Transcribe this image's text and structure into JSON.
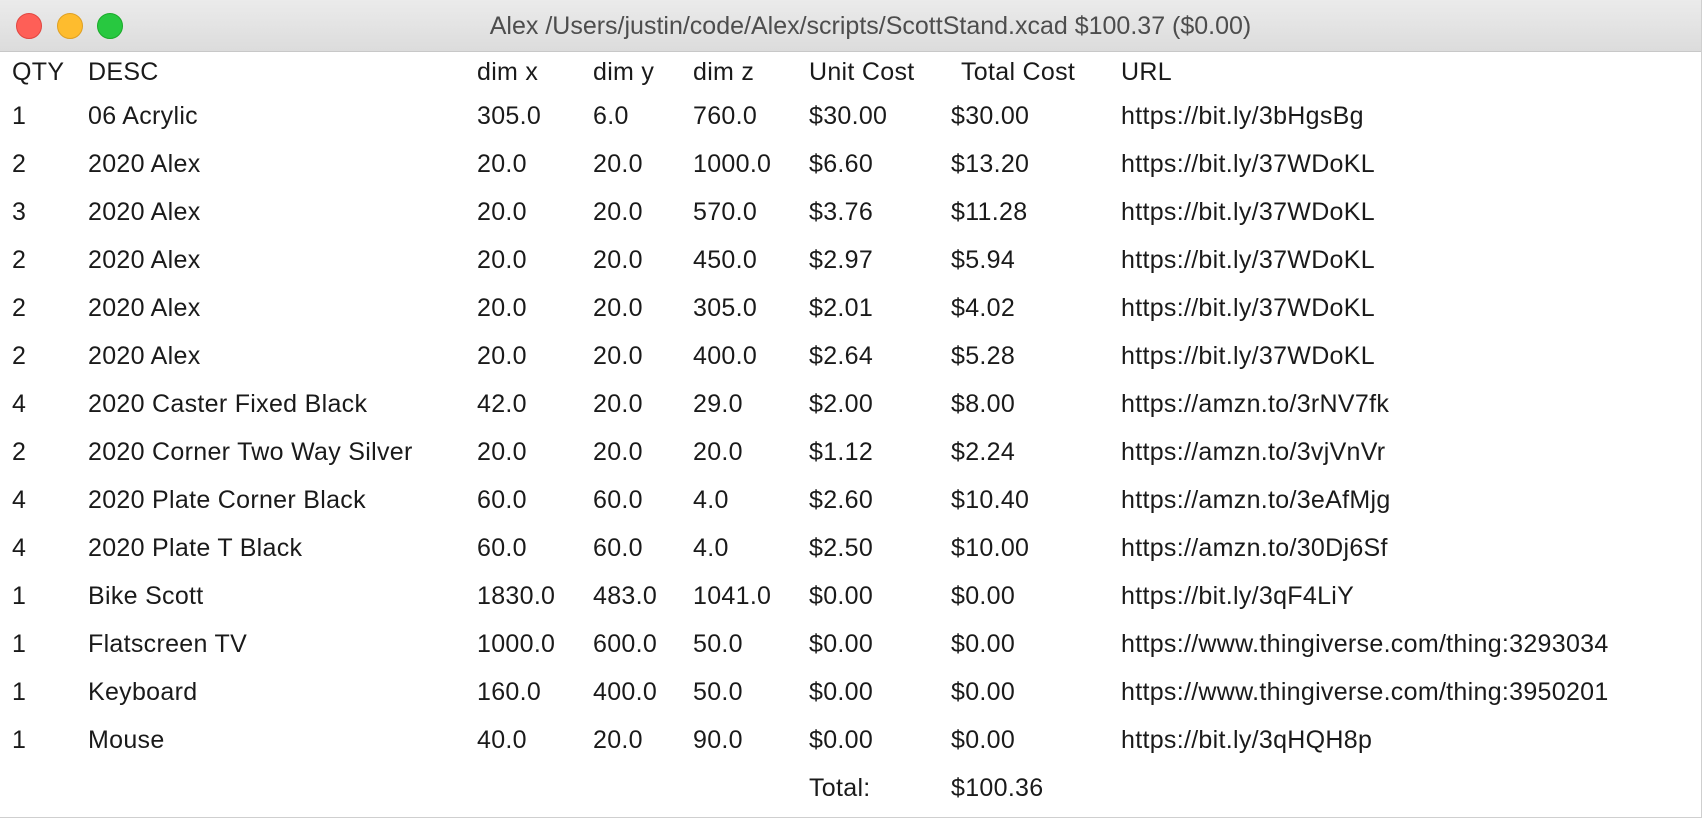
{
  "window": {
    "title": "Alex /Users/justin/code/Alex/scripts/ScottStand.xcad $100.37 ($0.00)"
  },
  "colors": {
    "desc_link": "#4b2393",
    "url_link": "#1c3ff0",
    "close": "#fe5f57",
    "minimize": "#febc2e",
    "maximize": "#28c840"
  },
  "table": {
    "headers": {
      "qty": "QTY",
      "desc": "DESC",
      "dim_x": "dim x",
      "dim_y": "dim y",
      "dim_z": "dim z",
      "unit_cost": "Unit Cost",
      "total_cost": "Total Cost",
      "url": "URL"
    },
    "rows": [
      {
        "qty": "1",
        "desc": "06 Acrylic",
        "dim_x": "305.0",
        "dim_y": "6.0",
        "dim_z": "760.0",
        "unit_cost": "$30.00",
        "total_cost": "$30.00",
        "url": "https://bit.ly/3bHgsBg"
      },
      {
        "qty": "2",
        "desc": "2020 Alex",
        "dim_x": "20.0",
        "dim_y": "20.0",
        "dim_z": "1000.0",
        "unit_cost": "$6.60",
        "total_cost": "$13.20",
        "url": "https://bit.ly/37WDoKL"
      },
      {
        "qty": "3",
        "desc": "2020 Alex",
        "dim_x": "20.0",
        "dim_y": "20.0",
        "dim_z": "570.0",
        "unit_cost": "$3.76",
        "total_cost": "$11.28",
        "url": "https://bit.ly/37WDoKL"
      },
      {
        "qty": "2",
        "desc": "2020 Alex",
        "dim_x": "20.0",
        "dim_y": "20.0",
        "dim_z": "450.0",
        "unit_cost": "$2.97",
        "total_cost": "$5.94",
        "url": "https://bit.ly/37WDoKL"
      },
      {
        "qty": "2",
        "desc": "2020 Alex",
        "dim_x": "20.0",
        "dim_y": "20.0",
        "dim_z": "305.0",
        "unit_cost": "$2.01",
        "total_cost": "$4.02",
        "url": "https://bit.ly/37WDoKL"
      },
      {
        "qty": "2",
        "desc": "2020 Alex",
        "dim_x": "20.0",
        "dim_y": "20.0",
        "dim_z": "400.0",
        "unit_cost": "$2.64",
        "total_cost": "$5.28",
        "url": "https://bit.ly/37WDoKL"
      },
      {
        "qty": "4",
        "desc": "2020 Caster Fixed Black",
        "dim_x": "42.0",
        "dim_y": "20.0",
        "dim_z": "29.0",
        "unit_cost": "$2.00",
        "total_cost": "$8.00",
        "url": "https://amzn.to/3rNV7fk"
      },
      {
        "qty": "2",
        "desc": "2020 Corner Two Way Silver",
        "dim_x": "20.0",
        "dim_y": "20.0",
        "dim_z": "20.0",
        "unit_cost": "$1.12",
        "total_cost": "$2.24",
        "url": "https://amzn.to/3vjVnVr"
      },
      {
        "qty": "4",
        "desc": "2020 Plate Corner Black",
        "dim_x": "60.0",
        "dim_y": "60.0",
        "dim_z": "4.0",
        "unit_cost": "$2.60",
        "total_cost": "$10.40",
        "url": "https://amzn.to/3eAfMjg"
      },
      {
        "qty": "4",
        "desc": "2020 Plate T Black",
        "dim_x": "60.0",
        "dim_y": "60.0",
        "dim_z": "4.0",
        "unit_cost": "$2.50",
        "total_cost": "$10.00",
        "url": "https://amzn.to/30Dj6Sf"
      },
      {
        "qty": "1",
        "desc": "Bike Scott",
        "dim_x": "1830.0",
        "dim_y": "483.0",
        "dim_z": "1041.0",
        "unit_cost": "$0.00",
        "total_cost": "$0.00",
        "url": "https://bit.ly/3qF4LiY"
      },
      {
        "qty": "1",
        "desc": "Flatscreen TV",
        "dim_x": "1000.0",
        "dim_y": "600.0",
        "dim_z": "50.0",
        "unit_cost": "$0.00",
        "total_cost": "$0.00",
        "url": "https://www.thingiverse.com/thing:3293034"
      },
      {
        "qty": "1",
        "desc": "Keyboard",
        "dim_x": "160.0",
        "dim_y": "400.0",
        "dim_z": "50.0",
        "unit_cost": "$0.00",
        "total_cost": "$0.00",
        "url": "https://www.thingiverse.com/thing:3950201"
      },
      {
        "qty": "1",
        "desc": "Mouse",
        "dim_x": "40.0",
        "dim_y": "20.0",
        "dim_z": "90.0",
        "unit_cost": "$0.00",
        "total_cost": "$0.00",
        "url": "https://bit.ly/3qHQH8p"
      }
    ],
    "total_label": "Total:",
    "total_value": "$100.36"
  }
}
